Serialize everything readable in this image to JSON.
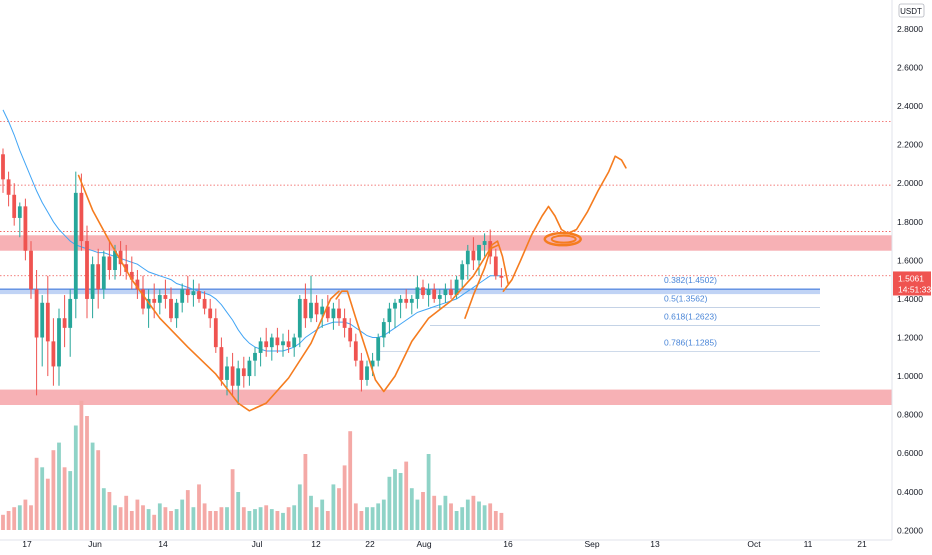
{
  "chart_data": {
    "type": "candlestick",
    "currency_label": "USDT",
    "y_range": [
      0.15,
      2.95
    ],
    "y_ticks": [
      "2.8000",
      "2.6000",
      "2.4000",
      "2.2000",
      "2.0000",
      "1.8000",
      "1.6000",
      "1.4000",
      "1.2000",
      "1.0000",
      "0.8000",
      "0.6000",
      "0.4000",
      "0.2000"
    ],
    "x_ticks": [
      "17",
      "Jun",
      "14",
      "Jul",
      "12",
      "22",
      "Aug",
      "16",
      "Sep",
      "13",
      "Oct",
      "11",
      "21"
    ],
    "last_price": {
      "value": "1.5061",
      "countdown": "14:51:33"
    },
    "fib_labels": [
      "0.382(1.4502)",
      "0.5(1.3562)",
      "0.618(1.2623)",
      "0.786(1.1285)"
    ],
    "fib_levels": [
      1.4502,
      1.3562,
      1.2623,
      1.1285
    ],
    "resistance_zone": [
      1.65,
      1.73
    ],
    "support_zone": [
      0.85,
      0.93
    ],
    "fib_zone": [
      1.425,
      1.455
    ],
    "dotted_levels": [
      2.32,
      1.99,
      1.75,
      1.52
    ],
    "candles": [
      [
        2.15,
        2.18,
        1.95,
        2.02
      ],
      [
        2.02,
        2.06,
        1.88,
        1.94
      ],
      [
        1.94,
        2.0,
        1.78,
        1.82
      ],
      [
        1.82,
        1.9,
        1.72,
        1.88
      ],
      [
        1.88,
        1.92,
        1.6,
        1.65
      ],
      [
        1.65,
        1.7,
        1.4,
        1.45
      ],
      [
        1.45,
        1.55,
        0.9,
        1.2
      ],
      [
        1.2,
        1.42,
        1.05,
        1.38
      ],
      [
        1.38,
        1.52,
        1.0,
        1.18
      ],
      [
        1.18,
        1.3,
        0.95,
        1.05
      ],
      [
        1.05,
        1.35,
        0.95,
        1.3
      ],
      [
        1.3,
        1.42,
        1.15,
        1.25
      ],
      [
        1.25,
        1.45,
        1.1,
        1.4
      ],
      [
        1.4,
        2.06,
        1.3,
        1.95
      ],
      [
        1.95,
        2.05,
        1.65,
        1.7
      ],
      [
        1.7,
        1.78,
        1.3,
        1.4
      ],
      [
        1.4,
        1.62,
        1.3,
        1.58
      ],
      [
        1.58,
        1.66,
        1.35,
        1.45
      ],
      [
        1.45,
        1.65,
        1.4,
        1.62
      ],
      [
        1.62,
        1.7,
        1.5,
        1.55
      ],
      [
        1.55,
        1.68,
        1.5,
        1.65
      ],
      [
        1.65,
        1.7,
        1.52,
        1.58
      ],
      [
        1.58,
        1.68,
        1.5,
        1.54
      ],
      [
        1.54,
        1.62,
        1.45,
        1.5
      ],
      [
        1.5,
        1.55,
        1.4,
        1.45
      ],
      [
        1.45,
        1.52,
        1.32,
        1.35
      ],
      [
        1.35,
        1.45,
        1.25,
        1.4
      ],
      [
        1.4,
        1.48,
        1.3,
        1.38
      ],
      [
        1.38,
        1.45,
        1.32,
        1.42
      ],
      [
        1.42,
        1.5,
        1.35,
        1.4
      ],
      [
        1.4,
        1.46,
        1.28,
        1.3
      ],
      [
        1.3,
        1.4,
        1.25,
        1.38
      ],
      [
        1.38,
        1.48,
        1.33,
        1.45
      ],
      [
        1.45,
        1.52,
        1.38,
        1.42
      ],
      [
        1.42,
        1.5,
        1.36,
        1.44
      ],
      [
        1.44,
        1.48,
        1.38,
        1.4
      ],
      [
        1.4,
        1.44,
        1.32,
        1.35
      ],
      [
        1.35,
        1.4,
        1.25,
        1.3
      ],
      [
        1.3,
        1.35,
        1.12,
        1.15
      ],
      [
        1.15,
        1.2,
        0.95,
        0.98
      ],
      [
        0.98,
        1.1,
        0.9,
        1.05
      ],
      [
        1.05,
        1.12,
        0.9,
        0.95
      ],
      [
        0.95,
        1.08,
        0.85,
        1.04
      ],
      [
        1.04,
        1.1,
        0.94,
        1.0
      ],
      [
        1.0,
        1.1,
        0.95,
        1.08
      ],
      [
        1.08,
        1.15,
        1.0,
        1.12
      ],
      [
        1.12,
        1.2,
        1.05,
        1.18
      ],
      [
        1.18,
        1.25,
        1.1,
        1.15
      ],
      [
        1.15,
        1.22,
        1.08,
        1.2
      ],
      [
        1.2,
        1.25,
        1.12,
        1.16
      ],
      [
        1.16,
        1.22,
        1.1,
        1.18
      ],
      [
        1.18,
        1.24,
        1.12,
        1.15
      ],
      [
        1.15,
        1.22,
        1.1,
        1.2
      ],
      [
        1.2,
        1.42,
        1.15,
        1.4
      ],
      [
        1.4,
        1.48,
        1.25,
        1.3
      ],
      [
        1.3,
        1.52,
        1.28,
        1.38
      ],
      [
        1.38,
        1.42,
        1.28,
        1.32
      ],
      [
        1.32,
        1.4,
        1.25,
        1.36
      ],
      [
        1.36,
        1.42,
        1.28,
        1.3
      ],
      [
        1.3,
        1.38,
        1.24,
        1.35
      ],
      [
        1.35,
        1.4,
        1.26,
        1.3
      ],
      [
        1.3,
        1.35,
        1.2,
        1.25
      ],
      [
        1.25,
        1.3,
        1.15,
        1.18
      ],
      [
        1.18,
        1.22,
        1.05,
        1.08
      ],
      [
        1.08,
        1.12,
        0.92,
        0.98
      ],
      [
        0.98,
        1.08,
        0.95,
        1.05
      ],
      [
        1.05,
        1.12,
        1.0,
        1.08
      ],
      [
        1.08,
        1.22,
        1.05,
        1.2
      ],
      [
        1.2,
        1.3,
        1.15,
        1.28
      ],
      [
        1.28,
        1.38,
        1.22,
        1.35
      ],
      [
        1.35,
        1.4,
        1.25,
        1.38
      ],
      [
        1.38,
        1.42,
        1.3,
        1.4
      ],
      [
        1.4,
        1.45,
        1.35,
        1.38
      ],
      [
        1.38,
        1.42,
        1.32,
        1.4
      ],
      [
        1.4,
        1.52,
        1.35,
        1.46
      ],
      [
        1.46,
        1.5,
        1.4,
        1.42
      ],
      [
        1.42,
        1.48,
        1.36,
        1.45
      ],
      [
        1.45,
        1.48,
        1.38,
        1.4
      ],
      [
        1.4,
        1.45,
        1.35,
        1.42
      ],
      [
        1.42,
        1.48,
        1.38,
        1.45
      ],
      [
        1.45,
        1.5,
        1.4,
        1.42
      ],
      [
        1.42,
        1.52,
        1.4,
        1.5
      ],
      [
        1.5,
        1.6,
        1.45,
        1.58
      ],
      [
        1.58,
        1.68,
        1.5,
        1.65
      ],
      [
        1.65,
        1.72,
        1.55,
        1.6
      ],
      [
        1.6,
        1.68,
        1.52,
        1.68
      ],
      [
        1.68,
        1.74,
        1.62,
        1.7
      ],
      [
        1.7,
        1.76,
        1.58,
        1.62
      ],
      [
        1.62,
        1.66,
        1.5,
        1.52
      ],
      [
        1.52,
        1.56,
        1.46,
        1.51
      ]
    ],
    "volume_heights": [
      8,
      10,
      12,
      13,
      16,
      13,
      38,
      33,
      27,
      42,
      46,
      33,
      31,
      55,
      68,
      60,
      46,
      42,
      22,
      20,
      13,
      12,
      18,
      10,
      16,
      13,
      11,
      8,
      14,
      12,
      10,
      11,
      16,
      21,
      12,
      24,
      14,
      10,
      10,
      12,
      12,
      32,
      20,
      12,
      10,
      11,
      12,
      13,
      11,
      10,
      9,
      12,
      13,
      24,
      40,
      18,
      12,
      16,
      10,
      24,
      22,
      34,
      52,
      14,
      10,
      12,
      12,
      14,
      16,
      28,
      32,
      30,
      36,
      22,
      16,
      20,
      40,
      18,
      13,
      18,
      14,
      10,
      12,
      16,
      18,
      15,
      13,
      14,
      10,
      9
    ],
    "moving_average": [
      2.38,
      2.32,
      2.25,
      2.17,
      2.1,
      2.03,
      1.96,
      1.9,
      1.85,
      1.8,
      1.76,
      1.73,
      1.7,
      1.68,
      1.67,
      1.66,
      1.65,
      1.64,
      1.64,
      1.63,
      1.62,
      1.61,
      1.6,
      1.59,
      1.58,
      1.56,
      1.54,
      1.53,
      1.52,
      1.51,
      1.5,
      1.48,
      1.47,
      1.46,
      1.45,
      1.44,
      1.43,
      1.42,
      1.4,
      1.37,
      1.33,
      1.29,
      1.24,
      1.2,
      1.17,
      1.15,
      1.14,
      1.13,
      1.13,
      1.13,
      1.13,
      1.14,
      1.15,
      1.17,
      1.2,
      1.22,
      1.24,
      1.26,
      1.27,
      1.28,
      1.28,
      1.28,
      1.27,
      1.25,
      1.23,
      1.21,
      1.2,
      1.2,
      1.21,
      1.23,
      1.25,
      1.27,
      1.29,
      1.31,
      1.33,
      1.34,
      1.35,
      1.36,
      1.37,
      1.38,
      1.39,
      1.4,
      1.42,
      1.44,
      1.46,
      1.48,
      1.5,
      1.52,
      1.52,
      1.52
    ],
    "projection_path": [
      [
        0.0,
        1.44
      ],
      [
        2.0,
        1.5
      ],
      [
        4.0,
        1.6
      ],
      [
        6.5,
        1.73
      ],
      [
        9.0,
        1.83
      ],
      [
        10.5,
        1.88
      ],
      [
        12.0,
        1.83
      ],
      [
        13.5,
        1.76
      ],
      [
        15.0,
        1.74
      ],
      [
        17.0,
        1.76
      ],
      [
        19.5,
        1.85
      ],
      [
        22.0,
        1.96
      ],
      [
        24.5,
        2.06
      ],
      [
        26.0,
        2.14
      ],
      [
        27.5,
        2.12
      ],
      [
        28.5,
        2.08
      ]
    ],
    "projection_circle_center": [
      13.8,
      1.71
    ],
    "u_curves": [
      [
        [
          13.5,
          2.04
        ],
        [
          16,
          1.86
        ],
        [
          19,
          1.7
        ],
        [
          23,
          1.5
        ],
        [
          28,
          1.3
        ],
        [
          33,
          1.15
        ],
        [
          38,
          1.01
        ],
        [
          42,
          0.86
        ],
        [
          44,
          0.82
        ],
        [
          47,
          0.86
        ],
        [
          51,
          0.99
        ],
        [
          55,
          1.17
        ],
        [
          57,
          1.3
        ],
        [
          58.5,
          1.4
        ],
        [
          60,
          1.44
        ]
      ],
      [
        [
          59.5,
          1.4
        ],
        [
          60.5,
          1.44
        ],
        [
          61.5,
          1.44
        ],
        [
          63,
          1.3
        ],
        [
          65,
          1.12
        ],
        [
          66.5,
          0.98
        ],
        [
          68,
          0.92
        ],
        [
          70,
          1.0
        ],
        [
          73,
          1.18
        ],
        [
          76,
          1.3
        ],
        [
          80,
          1.39
        ],
        [
          84,
          1.52
        ],
        [
          87,
          1.66
        ],
        [
          88.5,
          1.68
        ]
      ],
      [
        [
          82.5,
          1.3
        ],
        [
          84,
          1.42
        ],
        [
          86,
          1.56
        ],
        [
          87.3,
          1.68
        ],
        [
          88.3,
          1.7
        ],
        [
          89.2,
          1.62
        ],
        [
          90.2,
          1.48
        ]
      ]
    ]
  }
}
